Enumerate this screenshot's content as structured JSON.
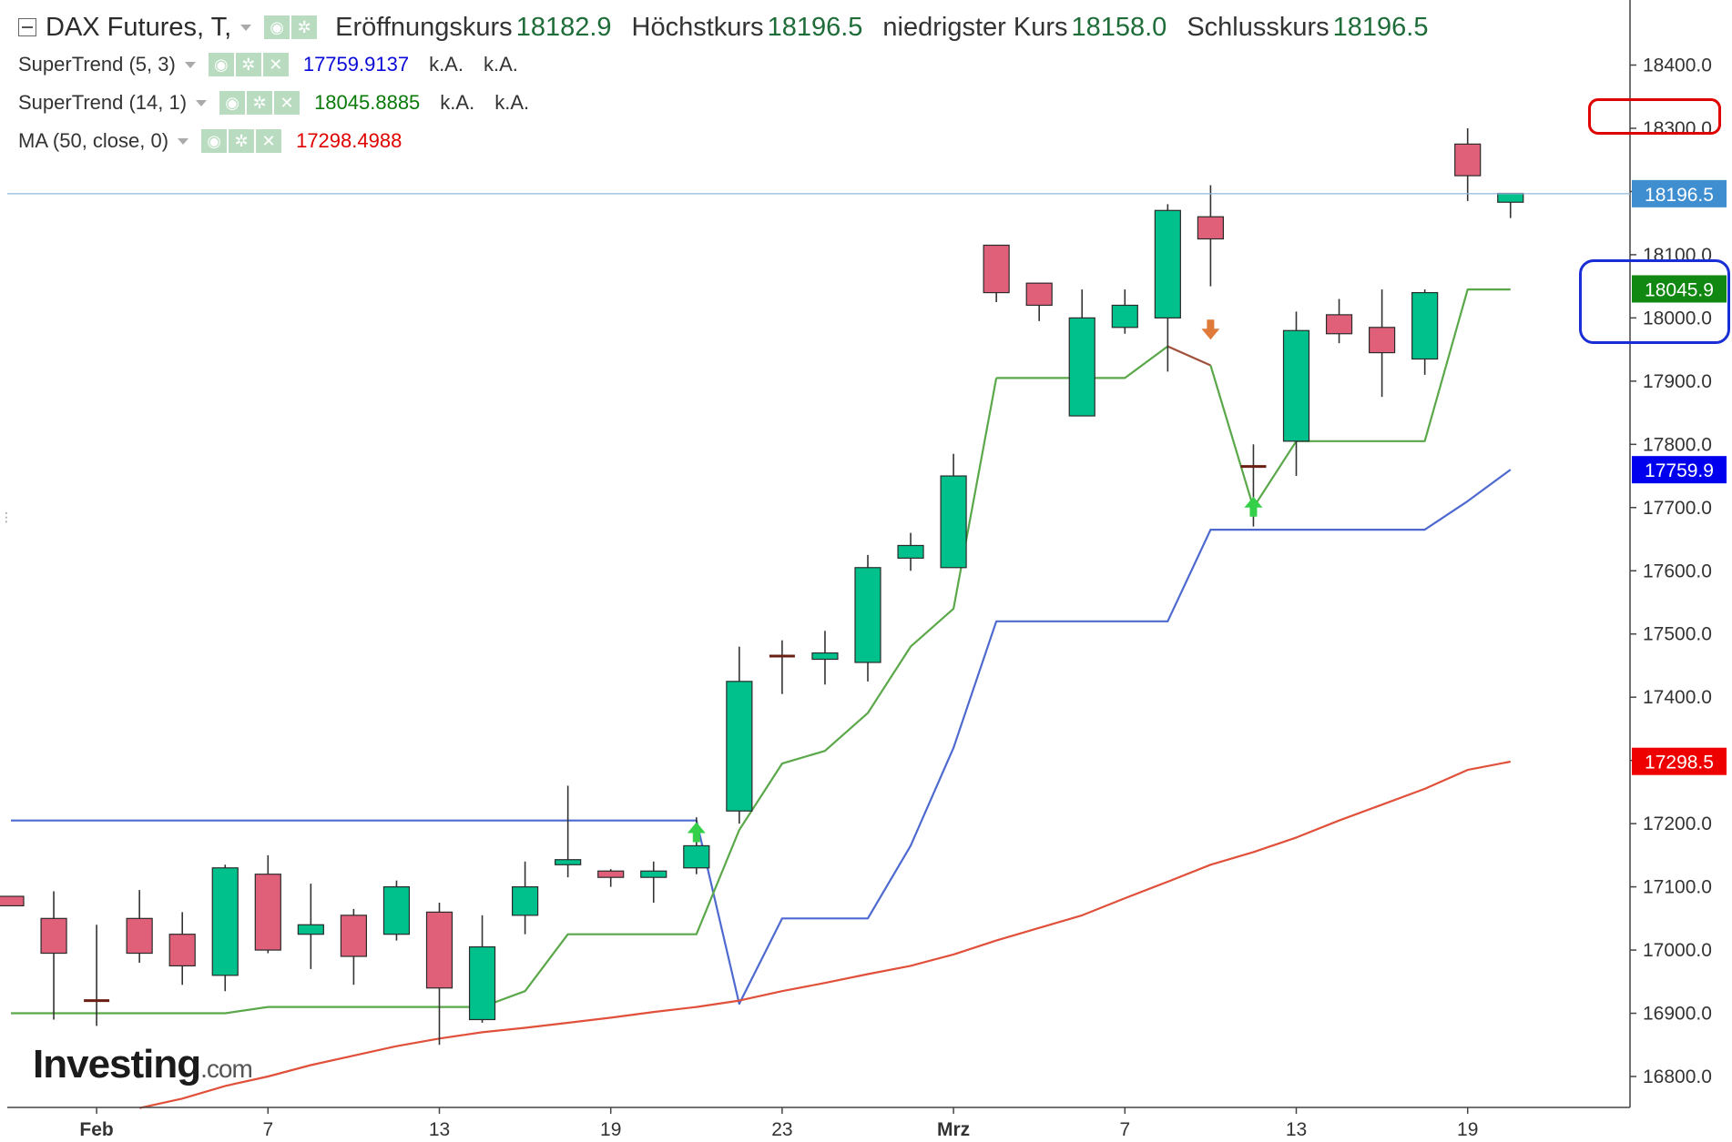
{
  "header": {
    "instrument": "DAX Futures, T,",
    "open_label": "Eröffnungskurs",
    "open_value": "18182.9",
    "high_label": "Höchstkurs",
    "high_value": "18196.5",
    "low_label": "niedrigster Kurs",
    "low_value": "18158.0",
    "close_label": "Schlusskurs",
    "close_value": "18196.5"
  },
  "indicators": [
    {
      "name": "SuperTrend (5, 3)",
      "value": "17759.9137",
      "color": "#0a0ad8",
      "na1": "k.A.",
      "na2": "k.A."
    },
    {
      "name": "SuperTrend (14, 1)",
      "value": "18045.8885",
      "color": "#0a7a0a",
      "na1": "k.A.",
      "na2": "k.A."
    },
    {
      "name": "MA (50, close, 0)",
      "value": "17298.4988",
      "color": "#e00000"
    }
  ],
  "logo": {
    "main": "Investing",
    "suffix": ".com"
  },
  "chart_data": {
    "type": "candlestick",
    "ylim": [
      16740,
      18450
    ],
    "yticks": [
      16800,
      16900,
      17000,
      17100,
      17200,
      17300,
      17400,
      17500,
      17600,
      17700,
      17800,
      17900,
      18000,
      18100,
      18200,
      18300,
      18400
    ],
    "xticks": [
      {
        "label": "Feb",
        "index": 2,
        "bold": true
      },
      {
        "label": "7",
        "index": 6
      },
      {
        "label": "13",
        "index": 10
      },
      {
        "label": "19",
        "index": 14
      },
      {
        "label": "23",
        "index": 18
      },
      {
        "label": "Mrz",
        "index": 22,
        "bold": true
      },
      {
        "label": "7",
        "index": 26
      },
      {
        "label": "13",
        "index": 30
      },
      {
        "label": "19",
        "index": 34
      }
    ],
    "colors": {
      "up": "#00c08b",
      "down": "#e0607a",
      "outline": "#2b2b2b",
      "wick": "#333333",
      "doji": "#6b1f12"
    },
    "candles": [
      {
        "o": 17085,
        "h": 17085,
        "l": 17070,
        "c": 17070
      },
      {
        "o": 17050,
        "h": 17093,
        "l": 16890,
        "c": 16995
      },
      {
        "o": 16920,
        "h": 17040,
        "l": 16880,
        "c": 16920
      },
      {
        "o": 17050,
        "h": 17095,
        "l": 16980,
        "c": 16995
      },
      {
        "o": 17025,
        "h": 17060,
        "l": 16945,
        "c": 16975
      },
      {
        "o": 16960,
        "h": 17135,
        "l": 16935,
        "c": 17130
      },
      {
        "o": 17120,
        "h": 17150,
        "l": 16995,
        "c": 17000
      },
      {
        "o": 17025,
        "h": 17105,
        "l": 16970,
        "c": 17040
      },
      {
        "o": 17055,
        "h": 17065,
        "l": 16945,
        "c": 16990
      },
      {
        "o": 17025,
        "h": 17110,
        "l": 17015,
        "c": 17100
      },
      {
        "o": 17060,
        "h": 17075,
        "l": 16850,
        "c": 16940
      },
      {
        "o": 16890,
        "h": 17055,
        "l": 16885,
        "c": 17005
      },
      {
        "o": 17055,
        "h": 17140,
        "l": 17025,
        "c": 17100
      },
      {
        "o": 17135,
        "h": 17260,
        "l": 17115,
        "c": 17143
      },
      {
        "o": 17125,
        "h": 17128,
        "l": 17100,
        "c": 17115
      },
      {
        "o": 17115,
        "h": 17140,
        "l": 17075,
        "c": 17125
      },
      {
        "o": 17130,
        "h": 17210,
        "l": 17120,
        "c": 17165
      },
      {
        "o": 17220,
        "h": 17480,
        "l": 17200,
        "c": 17425
      },
      {
        "o": 17465,
        "h": 17490,
        "l": 17405,
        "c": 17465
      },
      {
        "o": 17460,
        "h": 17505,
        "l": 17420,
        "c": 17470
      },
      {
        "o": 17455,
        "h": 17625,
        "l": 17425,
        "c": 17605
      },
      {
        "o": 17620,
        "h": 17660,
        "l": 17600,
        "c": 17640
      },
      {
        "o": 17605,
        "h": 17785,
        "l": 17605,
        "c": 17750
      },
      {
        "o": 18115,
        "h": 18115,
        "l": 18025,
        "c": 18040
      },
      {
        "o": 18055,
        "h": 18055,
        "l": 17995,
        "c": 18020
      },
      {
        "o": 17845,
        "h": 18045,
        "l": 17845,
        "c": 18000
      },
      {
        "o": 17985,
        "h": 18045,
        "l": 17975,
        "c": 18020
      },
      {
        "o": 18000,
        "h": 18180,
        "l": 17915,
        "c": 18170
      },
      {
        "o": 18160,
        "h": 18210,
        "l": 18050,
        "c": 18125
      },
      {
        "o": 17765,
        "h": 17800,
        "l": 17670,
        "c": 17765
      },
      {
        "o": 17805,
        "h": 18010,
        "l": 17750,
        "c": 17980
      },
      {
        "o": 18005,
        "h": 18030,
        "l": 17960,
        "c": 17975
      },
      {
        "o": 17985,
        "h": 18045,
        "l": 17875,
        "c": 17945
      },
      {
        "o": 17935,
        "h": 18045,
        "l": 17910,
        "c": 18040
      },
      {
        "o": 18275,
        "h": 18300,
        "l": 18185,
        "c": 18225
      },
      {
        "o": 18183,
        "h": 18197,
        "l": 18158,
        "c": 18197
      }
    ],
    "series": [
      {
        "name": "SuperTrend (5, 3)",
        "color": "#4e6ad0",
        "x": [
          0,
          16,
          17,
          18,
          19,
          20,
          21,
          22,
          23,
          24,
          25,
          26,
          27,
          28,
          29,
          30,
          31,
          32,
          33,
          34,
          35
        ],
        "values": [
          17205,
          17205,
          16915,
          17050,
          17050,
          17050,
          17165,
          17320,
          17520,
          17520,
          17520,
          17520,
          17520,
          17665,
          17665,
          17665,
          17665,
          17665,
          17665,
          17710,
          17760
        ]
      },
      {
        "name": "SuperTrend (14, 1)",
        "color": "#5aa84a",
        "x": [
          0,
          1,
          2,
          3,
          4,
          5,
          6,
          7,
          8,
          9,
          10,
          11,
          12,
          13,
          14,
          15,
          16,
          17,
          18,
          19,
          20,
          21,
          22,
          23
        ],
        "values": [
          16900,
          16900,
          16900,
          16900,
          16900,
          16900,
          16910,
          16910,
          16910,
          16910,
          16910,
          16910,
          16935,
          17025,
          17025,
          17025,
          17025,
          17190,
          17295,
          17315,
          17375,
          17480,
          17540,
          17905
        ]
      },
      {
        "name": "",
        "color": "#5aa84a",
        "x": [
          23,
          24,
          25,
          26,
          27
        ],
        "values": [
          17905,
          17905,
          17905,
          17905,
          17955
        ]
      },
      {
        "name": "",
        "color": "#a0503a",
        "x": [
          27,
          28
        ],
        "values": [
          17955,
          17925
        ]
      },
      {
        "name": "",
        "color": "#5aa84a",
        "x": [
          28,
          29,
          30,
          31,
          32,
          33,
          34,
          35
        ],
        "values": [
          17925,
          17700,
          17805,
          17805,
          17805,
          17805,
          18045,
          18045
        ]
      },
      {
        "name": "MA (50, close, 0)",
        "color": "#e0503a",
        "x": [
          3,
          4,
          5,
          6,
          7,
          8,
          9,
          10,
          11,
          12,
          13,
          14,
          15,
          16,
          17,
          18,
          19,
          20,
          21,
          22,
          23,
          24,
          25,
          26,
          27,
          28,
          29,
          30,
          31,
          32,
          33,
          34,
          35
        ],
        "values": [
          16750,
          16765,
          16785,
          16800,
          16818,
          16833,
          16848,
          16860,
          16870,
          16877,
          16885,
          16893,
          16902,
          16910,
          16920,
          16935,
          16948,
          16962,
          16975,
          16993,
          17015,
          17035,
          17055,
          17082,
          17108,
          17135,
          17155,
          17178,
          17205,
          17230,
          17255,
          17285,
          17298
        ]
      }
    ],
    "signals": [
      {
        "type": "buy",
        "index": 16,
        "y": 17185,
        "color": "#35d04a"
      },
      {
        "type": "sell",
        "index": 28,
        "y": 17980,
        "color": "#e07a3a"
      },
      {
        "type": "buy",
        "index": 29,
        "y": 17700,
        "color": "#35d04a"
      }
    ],
    "price_tags": [
      {
        "label": "18196.5",
        "value": 18196.5,
        "bg": "#3f8ed0",
        "line": true
      },
      {
        "label": "18045.9",
        "value": 18045.9,
        "bg": "#118811"
      },
      {
        "label": "17759.9",
        "value": 17759.9,
        "bg": "#0000ee"
      },
      {
        "label": "17298.5",
        "value": 17298.5,
        "bg": "#ee0000"
      }
    ]
  }
}
